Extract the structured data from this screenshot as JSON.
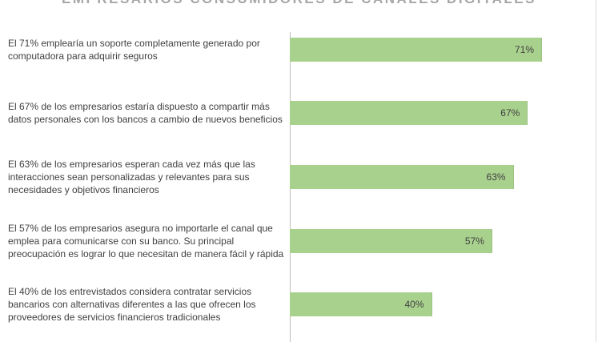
{
  "chart_data": {
    "type": "barh",
    "title": "EMPRESARIOS CONSUMIDORES DE CANALES DIGITALES",
    "categories": [
      "El 71% emplearía un soporte completamente generado por computadora para adquirir seguros",
      "El 67% de los empresarios estaría dispuesto a compartir más datos personales con los bancos a cambio de nuevos beneficios",
      "El 63% de los empresarios esperan cada vez más que las interacciones sean personalizadas y relevantes para sus necesidades y objetivos financieros",
      "El 57% de los empresarios asegura no importarle el canal que emplea para comunicarse con su banco. Su principal preocupación es lograr lo que necesitan de manera fácil y rápida",
      "El 40% de los entrevistados considera contratar servicios bancarios con alternativas diferentes a las que ofrecen los proveedores de servicios financieros tradicionales"
    ],
    "values": [
      71,
      67,
      63,
      57,
      40
    ],
    "value_labels": [
      "71%",
      "67%",
      "63%",
      "57%",
      "40%"
    ],
    "color": "#a9d18e",
    "xlim": [
      0,
      80
    ]
  }
}
